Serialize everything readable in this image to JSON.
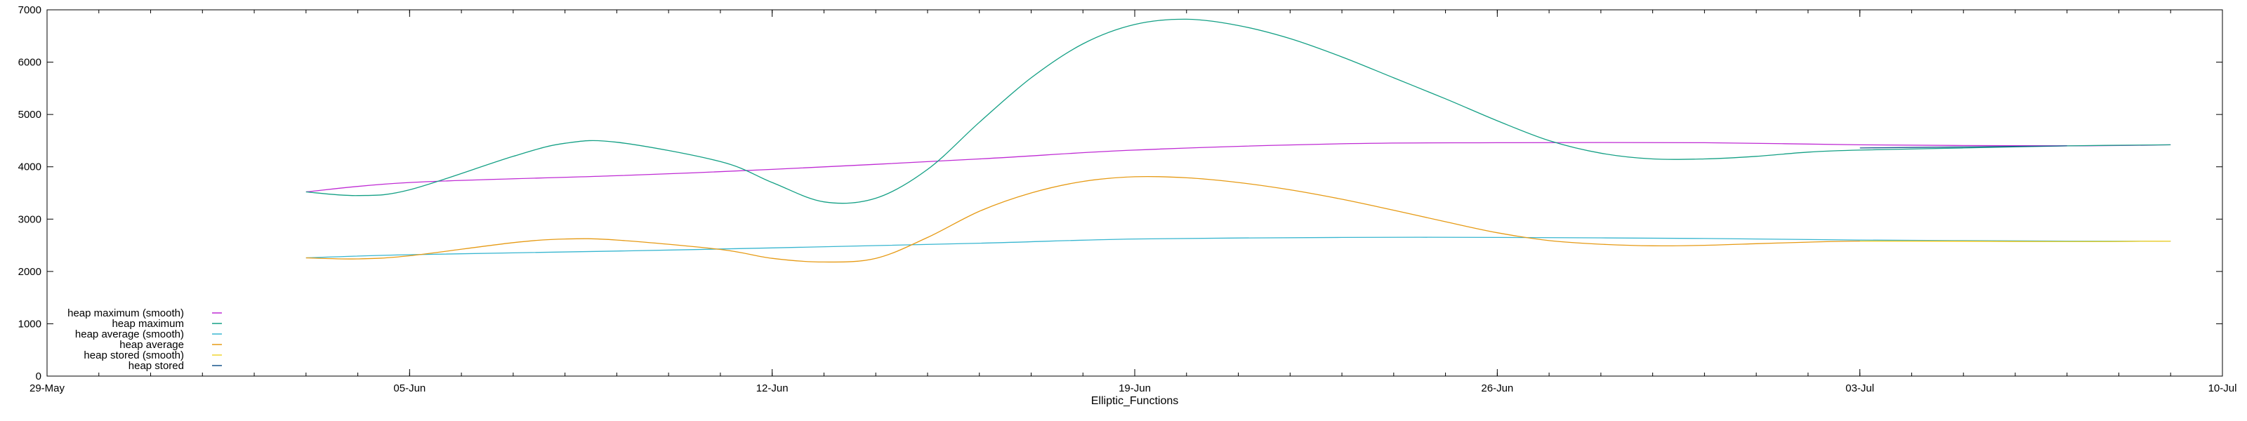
{
  "chart_data": {
    "type": "line",
    "xlabel": "Elliptic_Functions",
    "ylabel": "",
    "x_range": [
      "2023-05-29",
      "2023-07-10"
    ],
    "ylim": [
      0,
      7000
    ],
    "y_ticks": [
      0,
      1000,
      2000,
      3000,
      4000,
      5000,
      6000,
      7000
    ],
    "x_ticks": [
      {
        "date": "2023-05-29",
        "label": "29-May"
      },
      {
        "date": "2023-06-05",
        "label": "05-Jun"
      },
      {
        "date": "2023-06-12",
        "label": "12-Jun"
      },
      {
        "date": "2023-06-19",
        "label": "19-Jun"
      },
      {
        "date": "2023-06-26",
        "label": "26-Jun"
      },
      {
        "date": "2023-07-03",
        "label": "03-Jul"
      },
      {
        "date": "2023-07-10",
        "label": "10-Jul"
      }
    ],
    "grid": false,
    "legend_position": "bottom-left",
    "series": [
      {
        "name": "heap maximum (smooth)",
        "color": "#bf2bd4",
        "x": [
          "2023-06-03",
          "2023-06-05",
          "2023-06-09",
          "2023-06-12",
          "2023-06-16",
          "2023-06-19",
          "2023-06-23",
          "2023-06-26",
          "2023-06-30",
          "2023-07-03",
          "2023-07-07",
          "2023-07-09"
        ],
        "y": [
          3520,
          3700,
          3830,
          3950,
          4150,
          4320,
          4440,
          4460,
          4460,
          4420,
          4400,
          4420
        ]
      },
      {
        "name": "heap maximum",
        "color": "#14a085",
        "x": [
          "2023-06-03",
          "2023-06-04",
          "2023-06-05",
          "2023-06-07",
          "2023-06-08",
          "2023-06-09",
          "2023-06-11",
          "2023-06-12",
          "2023-06-13",
          "2023-06-14",
          "2023-06-15",
          "2023-06-16",
          "2023-06-17",
          "2023-06-18",
          "2023-06-19",
          "2023-06-20",
          "2023-06-21",
          "2023-06-22",
          "2023-06-23",
          "2023-06-24",
          "2023-06-25",
          "2023-06-26",
          "2023-06-27",
          "2023-06-28",
          "2023-06-29",
          "2023-06-30",
          "2023-07-01",
          "2023-07-02",
          "2023-07-03",
          "2023-07-05",
          "2023-07-07",
          "2023-07-09"
        ],
        "y": [
          3520,
          3450,
          3560,
          4200,
          4450,
          4470,
          4100,
          3700,
          3330,
          3400,
          3950,
          4850,
          5700,
          6350,
          6720,
          6820,
          6700,
          6450,
          6100,
          5700,
          5300,
          4880,
          4500,
          4260,
          4150,
          4150,
          4200,
          4280,
          4320,
          4360,
          4400,
          4420
        ]
      },
      {
        "name": "heap average (smooth)",
        "color": "#38b6d0",
        "x": [
          "2023-06-03",
          "2023-06-05",
          "2023-06-09",
          "2023-06-12",
          "2023-06-16",
          "2023-06-19",
          "2023-06-23",
          "2023-06-26",
          "2023-06-30",
          "2023-07-03",
          "2023-07-07",
          "2023-07-09"
        ],
        "y": [
          2260,
          2320,
          2390,
          2450,
          2540,
          2620,
          2650,
          2650,
          2630,
          2600,
          2580,
          2580
        ]
      },
      {
        "name": "heap average",
        "color": "#e69a14",
        "x": [
          "2023-06-03",
          "2023-06-04",
          "2023-06-05",
          "2023-06-07",
          "2023-06-08",
          "2023-06-09",
          "2023-06-11",
          "2023-06-12",
          "2023-06-13",
          "2023-06-14",
          "2023-06-15",
          "2023-06-16",
          "2023-06-17",
          "2023-06-18",
          "2023-06-19",
          "2023-06-20",
          "2023-06-21",
          "2023-06-22",
          "2023-06-23",
          "2023-06-24",
          "2023-06-25",
          "2023-06-26",
          "2023-06-27",
          "2023-06-28",
          "2023-06-29",
          "2023-06-30",
          "2023-07-01",
          "2023-07-02",
          "2023-07-03",
          "2023-07-05",
          "2023-07-07",
          "2023-07-09"
        ],
        "y": [
          2260,
          2240,
          2300,
          2550,
          2620,
          2600,
          2420,
          2250,
          2180,
          2250,
          2650,
          3150,
          3500,
          3720,
          3810,
          3790,
          3700,
          3560,
          3380,
          3170,
          2950,
          2740,
          2590,
          2520,
          2490,
          2500,
          2530,
          2560,
          2580,
          2580,
          2570,
          2580
        ]
      },
      {
        "name": "heap stored (smooth)",
        "color": "#f0d630",
        "x": [
          "2023-07-03",
          "2023-07-05",
          "2023-07-07",
          "2023-07-09"
        ],
        "y": [
          2580,
          2575,
          2570,
          2580
        ]
      },
      {
        "name": "heap stored",
        "color": "#17568c",
        "x": [
          "2023-07-03",
          "2023-07-05",
          "2023-07-07"
        ],
        "y": [
          4360,
          4380,
          4400
        ]
      }
    ]
  }
}
